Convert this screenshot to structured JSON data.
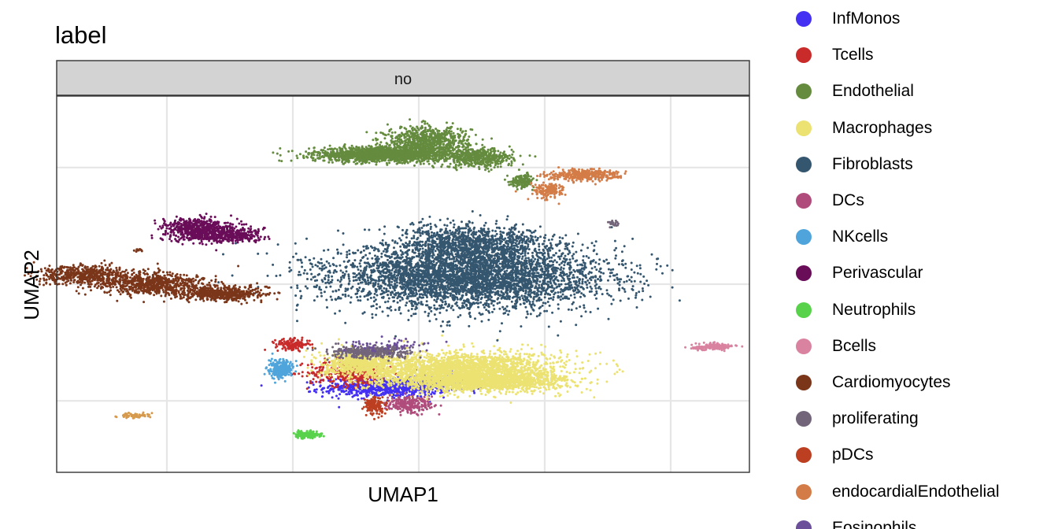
{
  "chart_data": {
    "type": "scatter",
    "title": "label",
    "facet": "no",
    "xlabel": "UMAP1",
    "ylabel": "UMAP2",
    "grid": true,
    "legend_position": "right",
    "xlim": [
      -11,
      11
    ],
    "ylim": [
      -10,
      10
    ],
    "clusters": [
      {
        "name": "InfMonos",
        "color": "#4430F2",
        "n": 900,
        "parts": [
          {
            "cx": -0.5,
            "cy": -5.5,
            "rx": 1.8,
            "ry": 0.45,
            "w": 0.85
          },
          {
            "cx": 1.1,
            "cy": -5.1,
            "rx": 0.9,
            "ry": 0.35,
            "w": 0.15
          }
        ]
      },
      {
        "name": "Tcells",
        "color": "#C92A2A",
        "n": 500,
        "parts": [
          {
            "cx": -1.7,
            "cy": -4.7,
            "rx": 1.2,
            "ry": 0.65,
            "w": 0.7
          },
          {
            "cx": -3.5,
            "cy": -3.2,
            "rx": 0.5,
            "ry": 0.25,
            "w": 0.3
          }
        ]
      },
      {
        "name": "Endothelial",
        "color": "#648B3E",
        "n": 3000,
        "parts": [
          {
            "cx": -0.6,
            "cy": 6.9,
            "rx": 2.0,
            "ry": 0.35,
            "w": 0.55
          },
          {
            "cx": 0.8,
            "cy": 7.6,
            "rx": 1.2,
            "ry": 0.7,
            "w": 0.25
          },
          {
            "cx": 2.4,
            "cy": 6.7,
            "rx": 1.0,
            "ry": 0.45,
            "w": 0.15
          },
          {
            "cx": 3.8,
            "cy": 5.5,
            "rx": 0.35,
            "ry": 0.3,
            "w": 0.05
          }
        ]
      },
      {
        "name": "Macrophages",
        "color": "#EBE272",
        "n": 4200,
        "parts": [
          {
            "cx": 1.9,
            "cy": -4.6,
            "rx": 2.8,
            "ry": 0.9,
            "w": 0.6
          },
          {
            "cx": 2.6,
            "cy": -5.2,
            "rx": 2.3,
            "ry": 0.4,
            "w": 0.25
          },
          {
            "cx": -1.4,
            "cy": -4.2,
            "rx": 1.0,
            "ry": 0.6,
            "w": 0.15
          }
        ]
      },
      {
        "name": "Fibroblasts",
        "color": "#35566F",
        "n": 5200,
        "parts": [
          {
            "cx": 2.1,
            "cy": 0.4,
            "rx": 3.9,
            "ry": 1.55,
            "w": 0.8
          },
          {
            "cx": 2.2,
            "cy": 2.2,
            "rx": 2.1,
            "ry": 0.9,
            "w": 0.2
          }
        ]
      },
      {
        "name": "DCs",
        "color": "#B04C7C",
        "n": 250,
        "parts": [
          {
            "cx": 0.2,
            "cy": -6.4,
            "rx": 0.7,
            "ry": 0.35,
            "w": 1.0
          }
        ]
      },
      {
        "name": "NKcells",
        "color": "#4FA5DB",
        "n": 250,
        "parts": [
          {
            "cx": -3.9,
            "cy": -4.5,
            "rx": 0.35,
            "ry": 0.45,
            "w": 1.0
          }
        ]
      },
      {
        "name": "Perivascular",
        "color": "#6A0D59",
        "n": 900,
        "parts": [
          {
            "cx": -6.5,
            "cy": 2.9,
            "rx": 1.0,
            "ry": 0.55,
            "w": 0.7
          },
          {
            "cx": -5.3,
            "cy": 2.6,
            "rx": 0.8,
            "ry": 0.35,
            "w": 0.3
          }
        ]
      },
      {
        "name": "Neutrophils",
        "color": "#58D24B",
        "n": 160,
        "parts": [
          {
            "cx": -3.0,
            "cy": -8.0,
            "rx": 0.35,
            "ry": 0.15,
            "w": 1.0
          }
        ]
      },
      {
        "name": "Bcells",
        "color": "#D983A0",
        "n": 180,
        "parts": [
          {
            "cx": 10.0,
            "cy": -3.3,
            "rx": 0.5,
            "ry": 0.15,
            "w": 0.8
          },
          {
            "cx": 9.4,
            "cy": -3.4,
            "rx": 0.3,
            "ry": 0.08,
            "w": 0.2
          }
        ]
      },
      {
        "name": "Cardiomyocytes",
        "color": "#7B361A",
        "n": 1800,
        "parts": [
          {
            "cx": -10.2,
            "cy": 0.5,
            "rx": 1.3,
            "ry": 0.45,
            "w": 0.3
          },
          {
            "cx": -8.0,
            "cy": 0.0,
            "rx": 1.6,
            "ry": 0.55,
            "w": 0.4
          },
          {
            "cx": -5.8,
            "cy": -0.5,
            "rx": 1.2,
            "ry": 0.35,
            "w": 0.3
          }
        ]
      },
      {
        "name": "proliferating",
        "color": "#72657A",
        "n": 350,
        "parts": [
          {
            "cx": -1.0,
            "cy": -3.6,
            "rx": 1.2,
            "ry": 0.3,
            "w": 1.0
          }
        ]
      },
      {
        "name": "pDCs",
        "color": "#BC3F22",
        "n": 150,
        "parts": [
          {
            "cx": -0.9,
            "cy": -6.5,
            "rx": 0.3,
            "ry": 0.45,
            "w": 1.0
          }
        ]
      },
      {
        "name": "endocardialEndothelial",
        "color": "#D47C47",
        "n": 500,
        "parts": [
          {
            "cx": 5.7,
            "cy": 5.8,
            "rx": 1.0,
            "ry": 0.25,
            "w": 0.7
          },
          {
            "cx": 4.6,
            "cy": 5.0,
            "rx": 0.45,
            "ry": 0.4,
            "w": 0.3
          }
        ]
      },
      {
        "name": "Eosinophils",
        "color": "#6C4F9B",
        "n": 60,
        "parts": [
          {
            "cx": -0.6,
            "cy": -3.3,
            "rx": 1.2,
            "ry": 0.3,
            "w": 1.0
          }
        ]
      }
    ],
    "minor_clusters": [
      {
        "color": "#D59A4E",
        "n": 60,
        "cx": -8.5,
        "cy": -7.0,
        "rx": 0.45,
        "ry": 0.15
      },
      {
        "color": "#72657A",
        "n": 20,
        "cx": 6.7,
        "cy": 3.2,
        "rx": 0.15,
        "ry": 0.2
      },
      {
        "color": "#7B361A",
        "n": 12,
        "cx": -8.4,
        "cy": 1.8,
        "rx": 0.12,
        "ry": 0.08
      }
    ]
  }
}
